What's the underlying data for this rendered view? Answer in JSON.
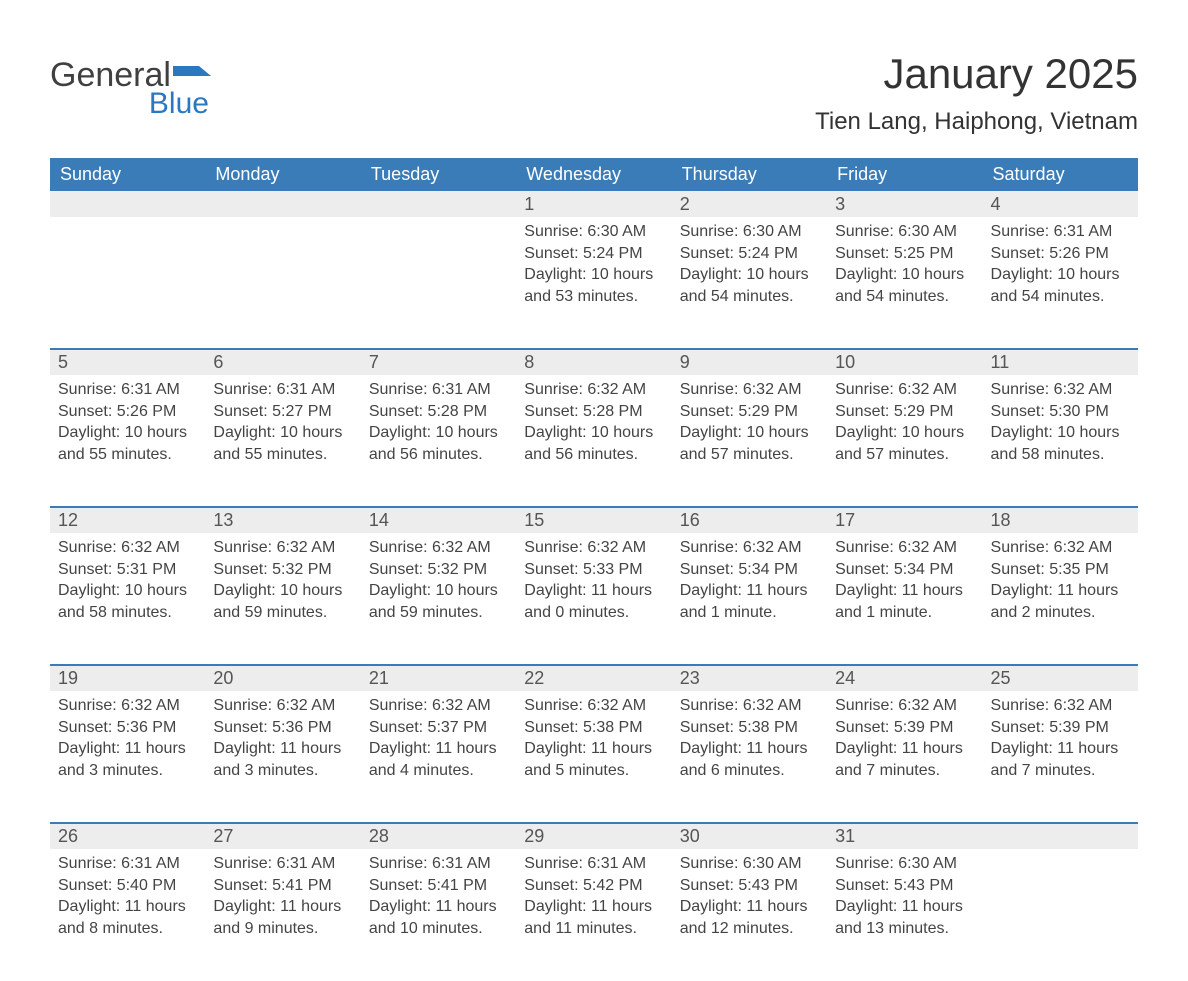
{
  "brand": {
    "general": "General",
    "blue": "Blue",
    "flag_color": "#2b78c0"
  },
  "title": "January 2025",
  "location": "Tien Lang, Haiphong, Vietnam",
  "theme": {
    "header_bg": "#3a7cb8",
    "header_fg": "#ffffff",
    "daynum_bg": "#ededed",
    "daynum_border": "#3a7cb8",
    "text_color": "#444444",
    "title_fontsize": 42,
    "location_fontsize": 24,
    "header_fontsize": 18,
    "body_fontsize": 16
  },
  "weekdays": [
    "Sunday",
    "Monday",
    "Tuesday",
    "Wednesday",
    "Thursday",
    "Friday",
    "Saturday"
  ],
  "weeks": [
    [
      null,
      null,
      null,
      {
        "d": "1",
        "sunrise": "Sunrise: 6:30 AM",
        "sunset": "Sunset: 5:24 PM",
        "dl1": "Daylight: 10 hours",
        "dl2": "and 53 minutes."
      },
      {
        "d": "2",
        "sunrise": "Sunrise: 6:30 AM",
        "sunset": "Sunset: 5:24 PM",
        "dl1": "Daylight: 10 hours",
        "dl2": "and 54 minutes."
      },
      {
        "d": "3",
        "sunrise": "Sunrise: 6:30 AM",
        "sunset": "Sunset: 5:25 PM",
        "dl1": "Daylight: 10 hours",
        "dl2": "and 54 minutes."
      },
      {
        "d": "4",
        "sunrise": "Sunrise: 6:31 AM",
        "sunset": "Sunset: 5:26 PM",
        "dl1": "Daylight: 10 hours",
        "dl2": "and 54 minutes."
      }
    ],
    [
      {
        "d": "5",
        "sunrise": "Sunrise: 6:31 AM",
        "sunset": "Sunset: 5:26 PM",
        "dl1": "Daylight: 10 hours",
        "dl2": "and 55 minutes."
      },
      {
        "d": "6",
        "sunrise": "Sunrise: 6:31 AM",
        "sunset": "Sunset: 5:27 PM",
        "dl1": "Daylight: 10 hours",
        "dl2": "and 55 minutes."
      },
      {
        "d": "7",
        "sunrise": "Sunrise: 6:31 AM",
        "sunset": "Sunset: 5:28 PM",
        "dl1": "Daylight: 10 hours",
        "dl2": "and 56 minutes."
      },
      {
        "d": "8",
        "sunrise": "Sunrise: 6:32 AM",
        "sunset": "Sunset: 5:28 PM",
        "dl1": "Daylight: 10 hours",
        "dl2": "and 56 minutes."
      },
      {
        "d": "9",
        "sunrise": "Sunrise: 6:32 AM",
        "sunset": "Sunset: 5:29 PM",
        "dl1": "Daylight: 10 hours",
        "dl2": "and 57 minutes."
      },
      {
        "d": "10",
        "sunrise": "Sunrise: 6:32 AM",
        "sunset": "Sunset: 5:29 PM",
        "dl1": "Daylight: 10 hours",
        "dl2": "and 57 minutes."
      },
      {
        "d": "11",
        "sunrise": "Sunrise: 6:32 AM",
        "sunset": "Sunset: 5:30 PM",
        "dl1": "Daylight: 10 hours",
        "dl2": "and 58 minutes."
      }
    ],
    [
      {
        "d": "12",
        "sunrise": "Sunrise: 6:32 AM",
        "sunset": "Sunset: 5:31 PM",
        "dl1": "Daylight: 10 hours",
        "dl2": "and 58 minutes."
      },
      {
        "d": "13",
        "sunrise": "Sunrise: 6:32 AM",
        "sunset": "Sunset: 5:32 PM",
        "dl1": "Daylight: 10 hours",
        "dl2": "and 59 minutes."
      },
      {
        "d": "14",
        "sunrise": "Sunrise: 6:32 AM",
        "sunset": "Sunset: 5:32 PM",
        "dl1": "Daylight: 10 hours",
        "dl2": "and 59 minutes."
      },
      {
        "d": "15",
        "sunrise": "Sunrise: 6:32 AM",
        "sunset": "Sunset: 5:33 PM",
        "dl1": "Daylight: 11 hours",
        "dl2": "and 0 minutes."
      },
      {
        "d": "16",
        "sunrise": "Sunrise: 6:32 AM",
        "sunset": "Sunset: 5:34 PM",
        "dl1": "Daylight: 11 hours",
        "dl2": "and 1 minute."
      },
      {
        "d": "17",
        "sunrise": "Sunrise: 6:32 AM",
        "sunset": "Sunset: 5:34 PM",
        "dl1": "Daylight: 11 hours",
        "dl2": "and 1 minute."
      },
      {
        "d": "18",
        "sunrise": "Sunrise: 6:32 AM",
        "sunset": "Sunset: 5:35 PM",
        "dl1": "Daylight: 11 hours",
        "dl2": "and 2 minutes."
      }
    ],
    [
      {
        "d": "19",
        "sunrise": "Sunrise: 6:32 AM",
        "sunset": "Sunset: 5:36 PM",
        "dl1": "Daylight: 11 hours",
        "dl2": "and 3 minutes."
      },
      {
        "d": "20",
        "sunrise": "Sunrise: 6:32 AM",
        "sunset": "Sunset: 5:36 PM",
        "dl1": "Daylight: 11 hours",
        "dl2": "and 3 minutes."
      },
      {
        "d": "21",
        "sunrise": "Sunrise: 6:32 AM",
        "sunset": "Sunset: 5:37 PM",
        "dl1": "Daylight: 11 hours",
        "dl2": "and 4 minutes."
      },
      {
        "d": "22",
        "sunrise": "Sunrise: 6:32 AM",
        "sunset": "Sunset: 5:38 PM",
        "dl1": "Daylight: 11 hours",
        "dl2": "and 5 minutes."
      },
      {
        "d": "23",
        "sunrise": "Sunrise: 6:32 AM",
        "sunset": "Sunset: 5:38 PM",
        "dl1": "Daylight: 11 hours",
        "dl2": "and 6 minutes."
      },
      {
        "d": "24",
        "sunrise": "Sunrise: 6:32 AM",
        "sunset": "Sunset: 5:39 PM",
        "dl1": "Daylight: 11 hours",
        "dl2": "and 7 minutes."
      },
      {
        "d": "25",
        "sunrise": "Sunrise: 6:32 AM",
        "sunset": "Sunset: 5:39 PM",
        "dl1": "Daylight: 11 hours",
        "dl2": "and 7 minutes."
      }
    ],
    [
      {
        "d": "26",
        "sunrise": "Sunrise: 6:31 AM",
        "sunset": "Sunset: 5:40 PM",
        "dl1": "Daylight: 11 hours",
        "dl2": "and 8 minutes."
      },
      {
        "d": "27",
        "sunrise": "Sunrise: 6:31 AM",
        "sunset": "Sunset: 5:41 PM",
        "dl1": "Daylight: 11 hours",
        "dl2": "and 9 minutes."
      },
      {
        "d": "28",
        "sunrise": "Sunrise: 6:31 AM",
        "sunset": "Sunset: 5:41 PM",
        "dl1": "Daylight: 11 hours",
        "dl2": "and 10 minutes."
      },
      {
        "d": "29",
        "sunrise": "Sunrise: 6:31 AM",
        "sunset": "Sunset: 5:42 PM",
        "dl1": "Daylight: 11 hours",
        "dl2": "and 11 minutes."
      },
      {
        "d": "30",
        "sunrise": "Sunrise: 6:30 AM",
        "sunset": "Sunset: 5:43 PM",
        "dl1": "Daylight: 11 hours",
        "dl2": "and 12 minutes."
      },
      {
        "d": "31",
        "sunrise": "Sunrise: 6:30 AM",
        "sunset": "Sunset: 5:43 PM",
        "dl1": "Daylight: 11 hours",
        "dl2": "and 13 minutes."
      },
      null
    ]
  ]
}
